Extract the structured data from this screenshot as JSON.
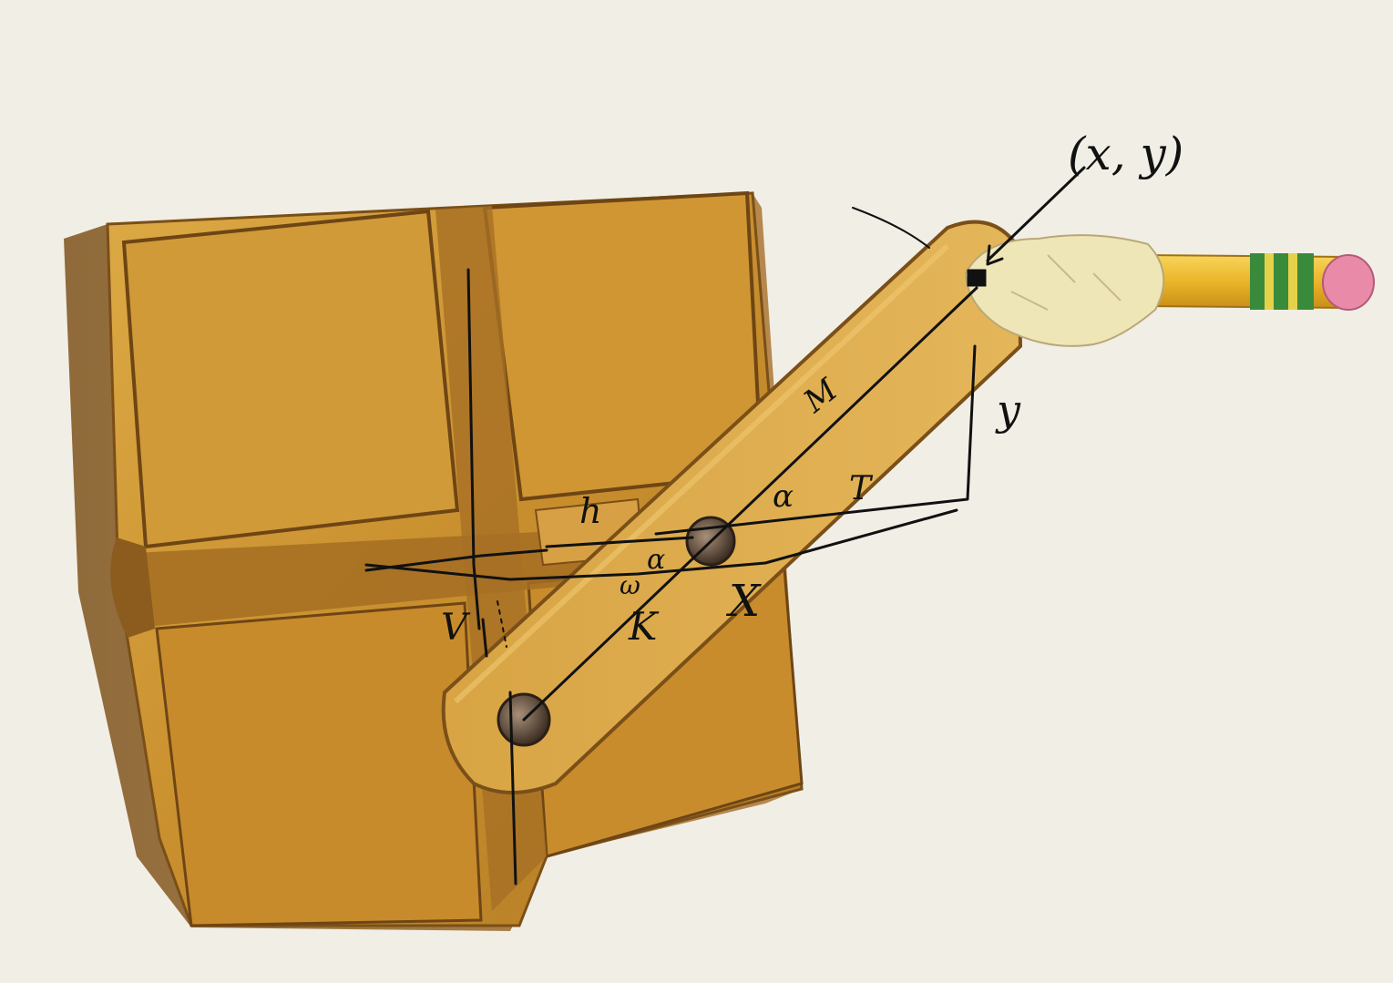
{
  "photo": {
    "subject": "wooden block with pivoting arm and pencil (trammel mechanism)",
    "colors": {
      "background": "#f1eee6",
      "wood_light": "#d9a23a",
      "wood_mid": "#c2862a",
      "wood_dark": "#8a5a1c",
      "ink": "#111111",
      "pencil_yellow": "#f2c331",
      "pencil_green": "#2f8a3a",
      "eraser": "#e88aa8",
      "tape": "#efe6b8"
    }
  },
  "annotations": {
    "point_label": "(x, y)",
    "arm_label": "M",
    "segment_t": "T",
    "segment_h": "h",
    "vertical_y": "y",
    "angle_alpha_top": "α",
    "angle_alpha_bottom": "α",
    "label_k": "K",
    "label_x": "X",
    "label_v": "V",
    "label_w": "ω"
  }
}
